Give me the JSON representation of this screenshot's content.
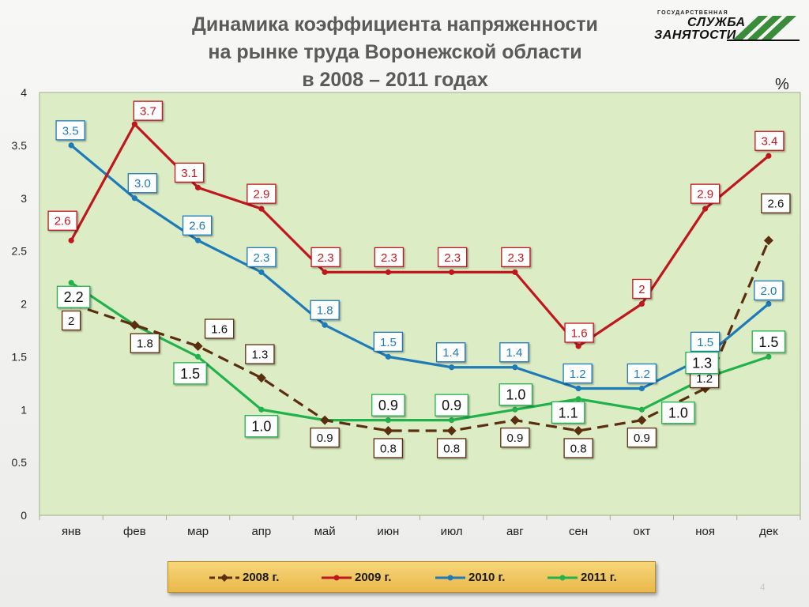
{
  "title_lines": [
    "Динамика коэффициента напряженности",
    "на рынке труда Воронежской области",
    "в 2008 – 2011  годах"
  ],
  "logo": {
    "small_text": "ГОСУДАРСТВЕННАЯ",
    "line1": "СЛУЖБА",
    "line2": "ЗАНЯТОСТИ"
  },
  "unit_label": "%",
  "page_number": "4",
  "colors": {
    "plot_bg": "#dcedc5",
    "plot_border": "#9eb087",
    "s2008": "#5c2e10",
    "s2009": "#c0161d",
    "s2010": "#1f7ab8",
    "s2011": "#22b24c"
  },
  "chart_data": {
    "type": "line",
    "categories": [
      "янв",
      "фев",
      "мар",
      "апр",
      "май",
      "июн",
      "июл",
      "авг",
      "сен",
      "окт",
      "ноя",
      "дек"
    ],
    "ylim": [
      0,
      4
    ],
    "yticks": [
      "0",
      "0.5",
      "1",
      "1.5",
      "2",
      "2.5",
      "3",
      "3.5",
      "4"
    ],
    "grid": false,
    "legend": "bottom",
    "series": [
      {
        "name": "2008 г.",
        "style": "dashed-diamond",
        "values": [
          2.0,
          1.8,
          1.6,
          1.3,
          0.9,
          0.8,
          0.8,
          0.9,
          0.8,
          0.9,
          1.2,
          2.6
        ],
        "labels": [
          "2",
          "1.8",
          "1.6",
          "1.3",
          "0.9",
          "0.8",
          "0.8",
          "0.9",
          "0.8",
          "0.9",
          "1.2",
          "2.6"
        ]
      },
      {
        "name": "2009 г.",
        "style": "solid",
        "values": [
          2.6,
          3.7,
          3.1,
          2.9,
          2.3,
          2.3,
          2.3,
          2.3,
          1.6,
          2.0,
          2.9,
          3.4
        ],
        "labels": [
          "2.6",
          "3.7",
          "3.1",
          "2.9",
          "2.3",
          "2.3",
          "2.3",
          "2.3",
          "1.6",
          "2",
          "2.9",
          "3.4"
        ]
      },
      {
        "name": "2010 г.",
        "style": "solid",
        "values": [
          3.5,
          3.0,
          2.6,
          2.3,
          1.8,
          1.5,
          1.4,
          1.4,
          1.2,
          1.2,
          1.5,
          2.0
        ],
        "labels": [
          "3.5",
          "3.0",
          "2.6",
          "2.3",
          "1.8",
          "1.5",
          "1.4",
          "1.4",
          "1.2",
          "1.2",
          "1.5",
          "2.0"
        ]
      },
      {
        "name": "2011 г.",
        "style": "solid",
        "values": [
          2.2,
          1.8,
          1.5,
          1.0,
          0.9,
          0.9,
          0.9,
          1.0,
          1.1,
          1.0,
          1.3,
          1.5
        ],
        "labels": [
          "2.2",
          "",
          "1.5",
          "1.0",
          "",
          "0.9",
          "0.9",
          "1.0",
          "1.1",
          "1.0",
          "1.3",
          "1.5"
        ]
      }
    ]
  }
}
